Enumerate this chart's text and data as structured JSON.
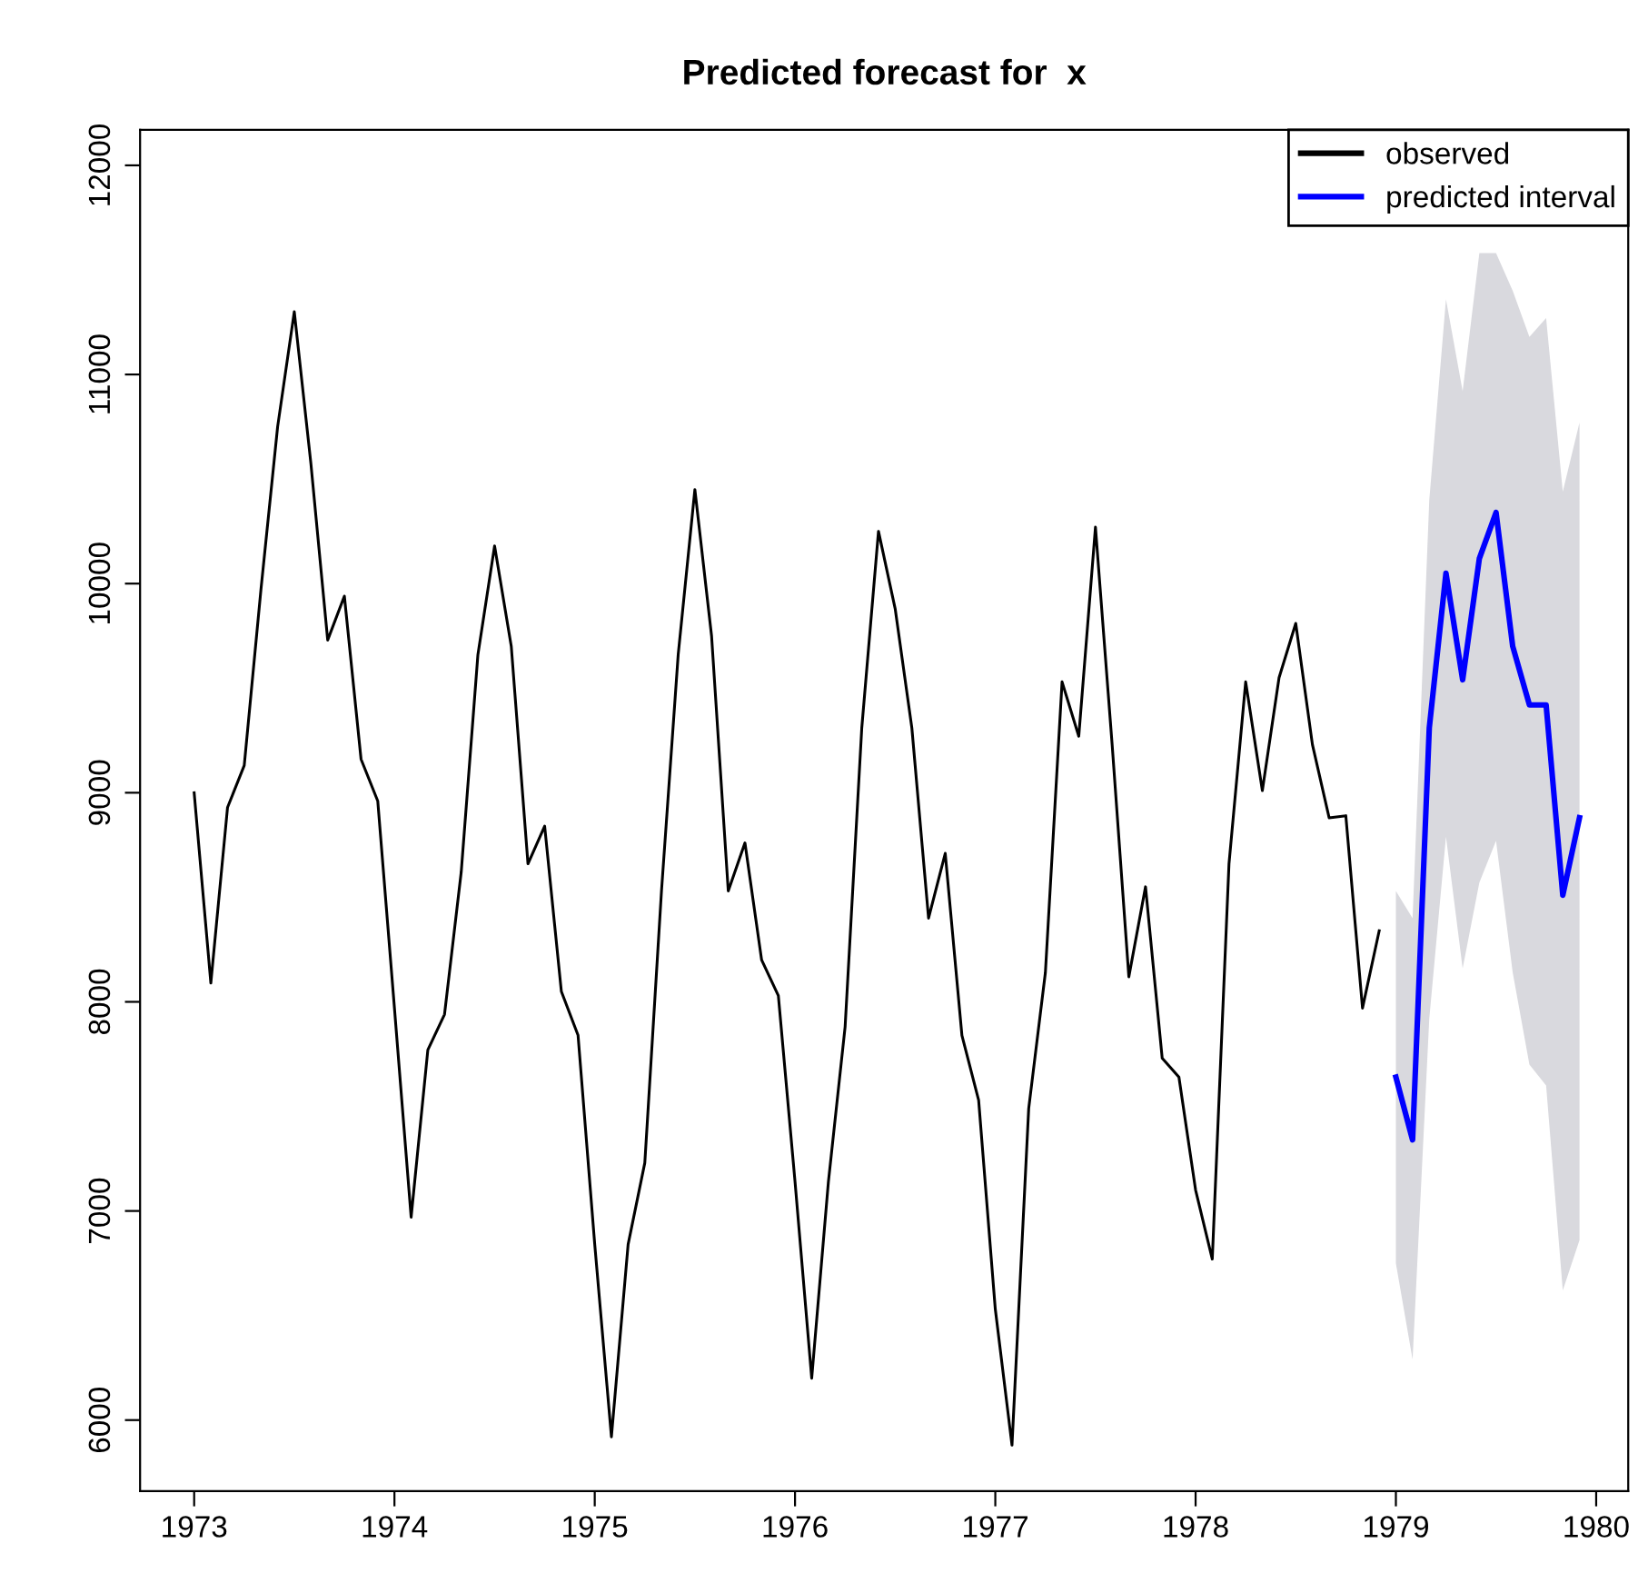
{
  "chart_data": {
    "type": "line",
    "title": "Predicted forecast for  x",
    "xlim": [
      1972.73,
      1980.16
    ],
    "xticks": [
      1973,
      1974,
      1975,
      1976,
      1977,
      1978,
      1979,
      1980
    ],
    "ylim": [
      5660,
      12170
    ],
    "yticks": [
      6000,
      7000,
      8000,
      9000,
      10000,
      11000,
      12000
    ],
    "grid": false,
    "legend": "top right",
    "marker": "none",
    "line_style": "solid",
    "series": [
      {
        "name": "observed",
        "color": "#000000",
        "x": [
          1973.0,
          1973.0833,
          1973.1667,
          1973.25,
          1973.3333,
          1973.4167,
          1973.5,
          1973.5833,
          1973.6667,
          1973.75,
          1973.8333,
          1973.9167,
          1974.0,
          1974.0833,
          1974.1667,
          1974.25,
          1974.3333,
          1974.4167,
          1974.5,
          1974.5833,
          1974.6667,
          1974.75,
          1974.8333,
          1974.9167,
          1975.0,
          1975.0833,
          1975.1667,
          1975.25,
          1975.3333,
          1975.4167,
          1975.5,
          1975.5833,
          1975.6667,
          1975.75,
          1975.8333,
          1975.9167,
          1976.0,
          1976.0833,
          1976.1667,
          1976.25,
          1976.3333,
          1976.4167,
          1976.5,
          1976.5833,
          1976.6667,
          1976.75,
          1976.8333,
          1976.9167,
          1977.0,
          1977.0833,
          1977.1667,
          1977.25,
          1977.3333,
          1977.4167,
          1977.5,
          1977.5833,
          1977.6667,
          1977.75,
          1977.8333,
          1977.9167,
          1978.0,
          1978.0833,
          1978.1667,
          1978.25,
          1978.3333,
          1978.4167,
          1978.5,
          1978.5833,
          1978.6667,
          1978.75,
          1978.8333,
          1978.9167
        ],
        "values": [
          9000,
          8090,
          8930,
          9130,
          9970,
          10750,
          11300,
          10570,
          9730,
          9940,
          9160,
          8960,
          7970,
          6970,
          7770,
          7940,
          8620,
          9660,
          10180,
          9700,
          8660,
          8840,
          8050,
          7840,
          6840,
          5920,
          6840,
          7230,
          8530,
          9660,
          10450,
          9750,
          8530,
          8760,
          8200,
          8030,
          7140,
          6200,
          7140,
          7880,
          9310,
          10250,
          9880,
          9310,
          8400,
          8710,
          7840,
          7530,
          6530,
          5880,
          7490,
          8140,
          9530,
          9270,
          10270,
          9230,
          8120,
          8550,
          7730,
          7640,
          7100,
          6770,
          8660,
          9530,
          9010,
          9550,
          9810,
          9230,
          8880,
          8890,
          7970,
          8340
        ]
      },
      {
        "name": "predicted interval",
        "color": "#0000ff",
        "x": [
          1979.0,
          1979.0833,
          1979.1667,
          1979.25,
          1979.3333,
          1979.4167,
          1979.5,
          1979.5833,
          1979.6667,
          1979.75,
          1979.8333,
          1979.9167
        ],
        "values": [
          7640,
          7340,
          9310,
          10050,
          9540,
          10120,
          10340,
          9700,
          9420,
          9420,
          8510,
          8880
        ],
        "lower": [
          6750,
          6290,
          7920,
          8790,
          8160,
          8570,
          8770,
          8140,
          7700,
          7600,
          6620,
          6860
        ],
        "upper": [
          8530,
          8400,
          10400,
          11360,
          10920,
          11580,
          11580,
          11400,
          11180,
          11270,
          10440,
          10770
        ]
      }
    ]
  }
}
